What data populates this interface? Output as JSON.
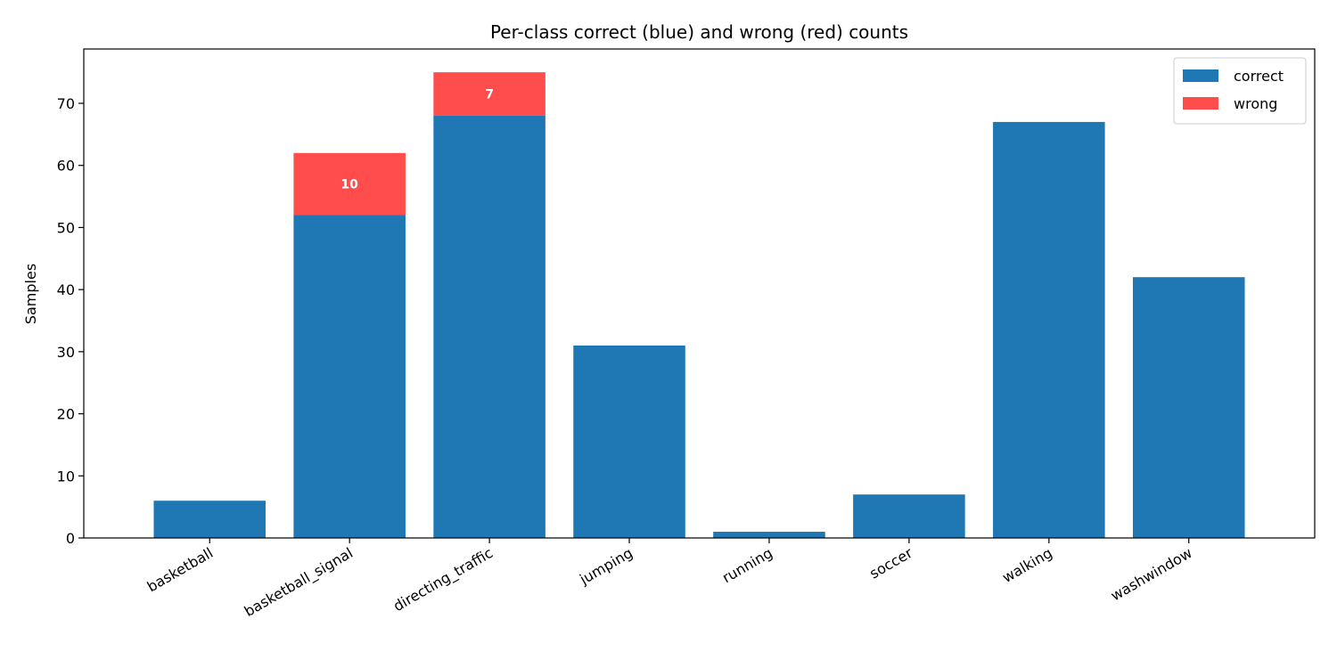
{
  "chart_data": {
    "type": "bar",
    "stacked": true,
    "title": "Per-class correct (blue) and wrong (red) counts",
    "xlabel": "",
    "ylabel": "Samples",
    "ylim": [
      0,
      78.75
    ],
    "yticks": [
      0,
      10,
      20,
      30,
      40,
      50,
      60,
      70
    ],
    "grid": false,
    "legend_position": "top-right",
    "categories": [
      "basketball",
      "basketball_signal",
      "directing_traffic",
      "jumping",
      "running",
      "soccer",
      "walking",
      "washwindow"
    ],
    "series": [
      {
        "name": "correct",
        "color": "#1f77b4",
        "values": [
          6,
          52,
          68,
          31,
          1,
          7,
          67,
          42
        ]
      },
      {
        "name": "wrong",
        "color": "#ff4c4c",
        "values": [
          0,
          10,
          7,
          0,
          0,
          0,
          0,
          0
        ]
      }
    ],
    "data_labels": [
      {
        "category": "basketball_signal",
        "series": "wrong",
        "text": "10"
      },
      {
        "category": "directing_traffic",
        "series": "wrong",
        "text": "7"
      }
    ]
  }
}
